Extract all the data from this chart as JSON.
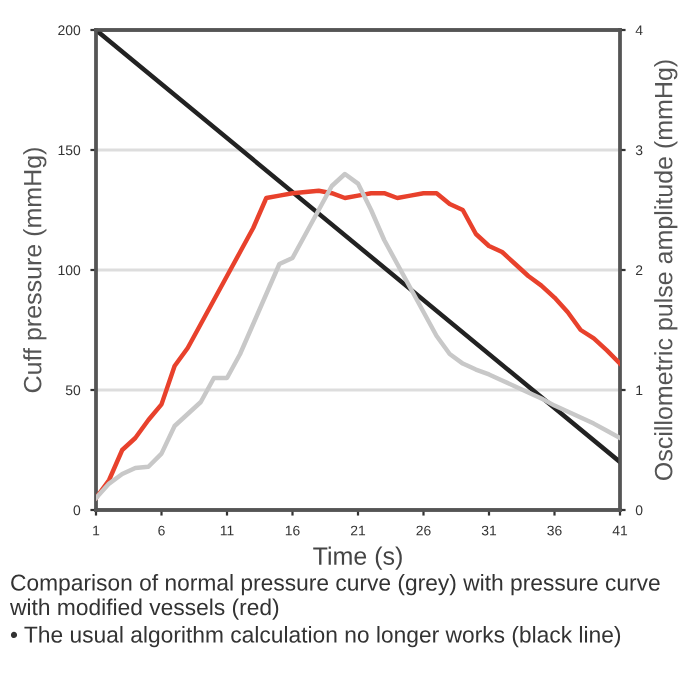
{
  "chart_data": {
    "type": "line",
    "xlabel": "Time (s)",
    "ylabel": "Cuff pressure (mmHg)",
    "y2label": "Oscillometric pulse amplitude (mmHg)",
    "xlim": [
      1,
      41
    ],
    "xticks": [
      1,
      6,
      11,
      16,
      21,
      26,
      31,
      36,
      41
    ],
    "ylim": [
      0,
      200
    ],
    "yticks": [
      0,
      50,
      100,
      150,
      200
    ],
    "y2lim": [
      0,
      4
    ],
    "y2ticks": [
      0,
      1,
      2,
      3,
      4
    ],
    "grid": "y",
    "legend": false,
    "marker": "none",
    "line_style": "solid",
    "series": [
      {
        "color": "#e8412c",
        "axis": "y2",
        "x": [
          1,
          2,
          3,
          4,
          5,
          6,
          7,
          8,
          9,
          10,
          11,
          12,
          13,
          14,
          15,
          16,
          17,
          18,
          19,
          20,
          21,
          22,
          23,
          24,
          25,
          26,
          27,
          28,
          29,
          30,
          31,
          32,
          33,
          34,
          35,
          36,
          37,
          38,
          39,
          40,
          41
        ],
        "values": [
          0.1,
          0.25,
          0.5,
          0.6,
          0.75,
          0.88,
          1.2,
          1.35,
          1.55,
          1.75,
          1.95,
          2.15,
          2.35,
          2.6,
          2.62,
          2.64,
          2.65,
          2.66,
          2.64,
          2.6,
          2.62,
          2.64,
          2.64,
          2.6,
          2.62,
          2.64,
          2.64,
          2.55,
          2.5,
          2.3,
          2.2,
          2.15,
          2.05,
          1.95,
          1.87,
          1.77,
          1.65,
          1.5,
          1.43,
          1.33,
          1.22
        ]
      },
      {
        "color": "#c8c8c8",
        "axis": "y2",
        "x": [
          1,
          2,
          3,
          4,
          5,
          6,
          7,
          8,
          9,
          10,
          11,
          12,
          13,
          14,
          15,
          16,
          17,
          18,
          19,
          20,
          21,
          22,
          23,
          24,
          25,
          26,
          27,
          28,
          29,
          30,
          31,
          32,
          33,
          34,
          35,
          36,
          37,
          38,
          39,
          40,
          41
        ],
        "values": [
          0.1,
          0.22,
          0.3,
          0.35,
          0.36,
          0.47,
          0.7,
          0.8,
          0.9,
          1.1,
          1.1,
          1.3,
          1.55,
          1.8,
          2.05,
          2.1,
          2.3,
          2.5,
          2.7,
          2.8,
          2.72,
          2.5,
          2.25,
          2.05,
          1.85,
          1.65,
          1.45,
          1.3,
          1.22,
          1.17,
          1.13,
          1.08,
          1.03,
          0.98,
          0.93,
          0.87,
          0.82,
          0.77,
          0.72,
          0.66,
          0.6
        ]
      },
      {
        "color": "#222222",
        "axis": "y",
        "x": [
          1,
          41
        ],
        "values": [
          200,
          20
        ]
      }
    ],
    "annotations": [
      "Comparison of normal pressure curve (grey) with pressure curve with modified vessels (red)",
      "• The usual algorithm calculation no longer works (black line)"
    ]
  }
}
